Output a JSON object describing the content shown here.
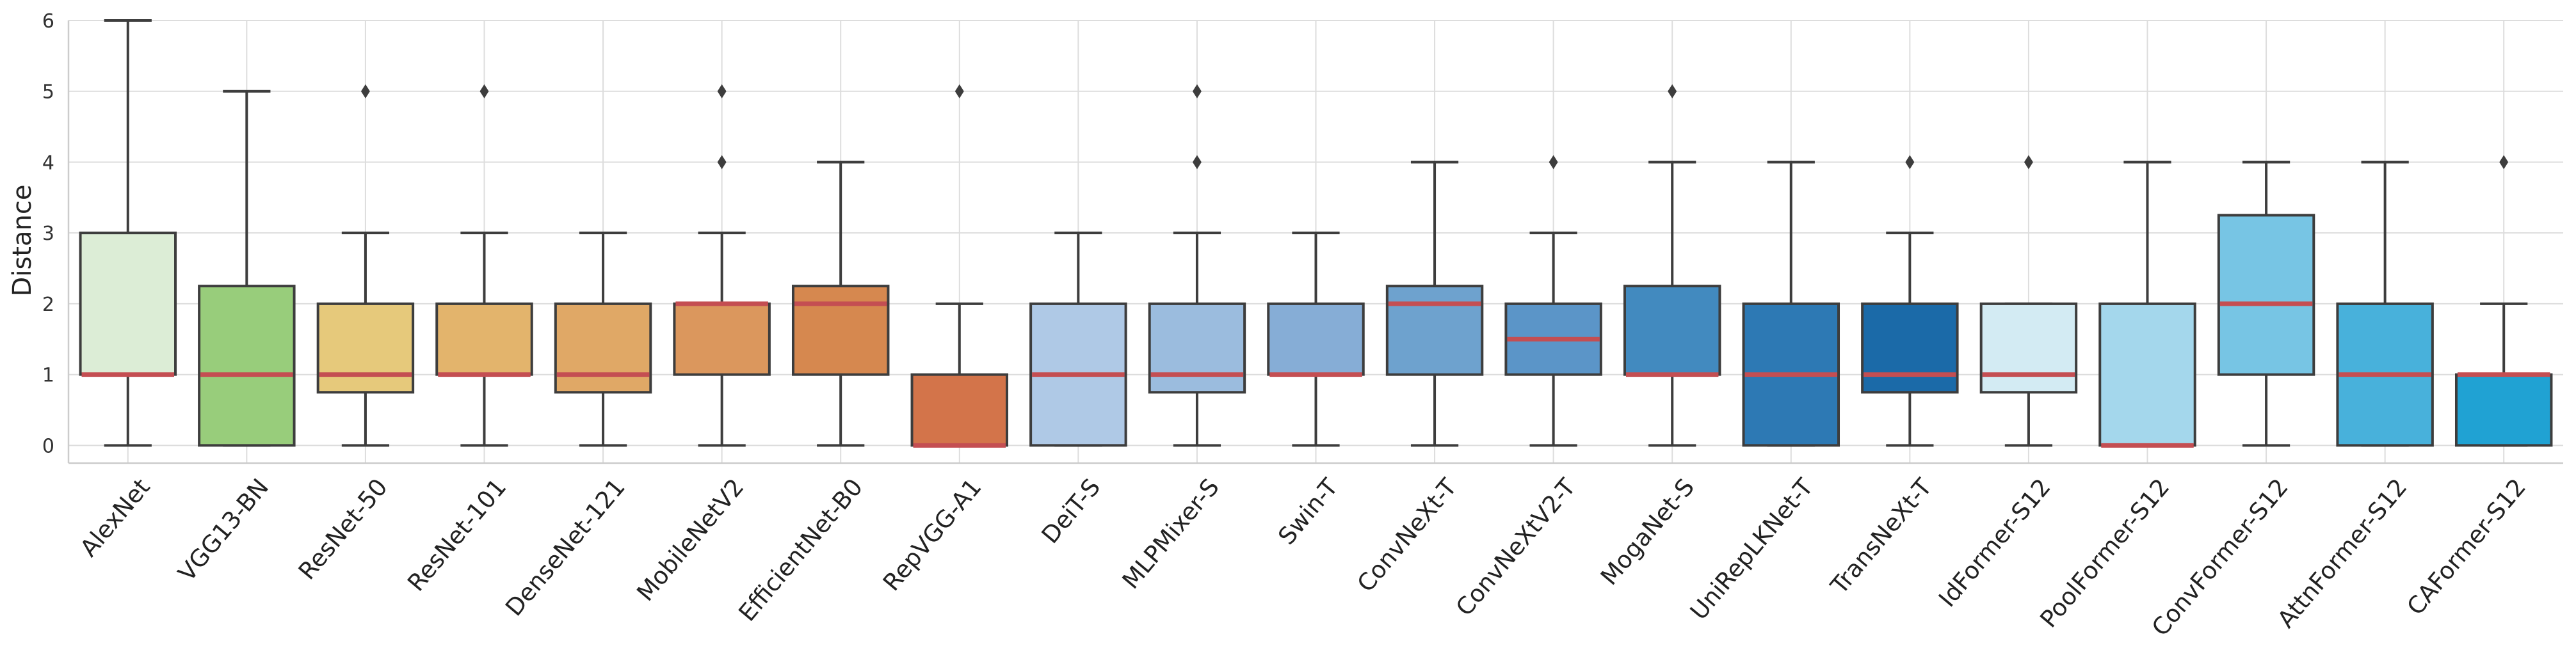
{
  "chart_data": {
    "type": "box",
    "title": "",
    "xlabel": "",
    "ylabel": "Distance",
    "ylim": [
      -0.25,
      6
    ],
    "yticks": [
      0,
      1,
      2,
      3,
      4,
      5,
      6
    ],
    "grid": true,
    "legend": "none",
    "median_color": "#c44e52",
    "categories": [
      "AlexNet",
      "VGG13-BN",
      "ResNet-50",
      "ResNet-101",
      "DenseNet-121",
      "MobileNetV2",
      "EfficientNet-B0",
      "RepVGG-A1",
      "DeiT-S",
      "MLPMixer-S",
      "Swin-T",
      "ConvNeXt-T",
      "ConvNeXtV2-T",
      "MogaNet-S",
      "UniRepLKNet-T",
      "TransNeXt-T",
      "IdFormer-S12",
      "PoolFormer-S12",
      "ConvFormer-S12",
      "AttnFormer-S12",
      "CAFormer-S12"
    ],
    "boxes": [
      {
        "whisker_low": 0,
        "q1": 1,
        "median": 1,
        "q3": 3,
        "whisker_high": 6,
        "outliers": [],
        "color": "#dcedd6"
      },
      {
        "whisker_low": 0,
        "q1": 0,
        "median": 1,
        "q3": 2.25,
        "whisker_high": 5,
        "outliers": [],
        "color": "#98cd7b"
      },
      {
        "whisker_low": 0,
        "q1": 0.75,
        "median": 1,
        "q3": 2,
        "whisker_high": 3,
        "outliers": [
          5
        ],
        "color": "#e6c97b"
      },
      {
        "whisker_low": 0,
        "q1": 1,
        "median": 1,
        "q3": 2,
        "whisker_high": 3,
        "outliers": [
          5
        ],
        "color": "#e3b46c"
      },
      {
        "whisker_low": 0,
        "q1": 0.75,
        "median": 1,
        "q3": 2,
        "whisker_high": 3,
        "outliers": [],
        "color": "#e0a866"
      },
      {
        "whisker_low": 0,
        "q1": 1,
        "median": 2,
        "q3": 2,
        "whisker_high": 3,
        "outliers": [
          4,
          5
        ],
        "color": "#db975d"
      },
      {
        "whisker_low": 0,
        "q1": 1,
        "median": 2,
        "q3": 2.25,
        "whisker_high": 4,
        "outliers": [],
        "color": "#d6884f"
      },
      {
        "whisker_low": 0,
        "q1": 0,
        "median": 0,
        "q3": 1,
        "whisker_high": 2,
        "outliers": [
          5
        ],
        "color": "#d3744a"
      },
      {
        "whisker_low": 0,
        "q1": 0,
        "median": 1,
        "q3": 2,
        "whisker_high": 3,
        "outliers": [],
        "color": "#afc9e6"
      },
      {
        "whisker_low": 0,
        "q1": 0.75,
        "median": 1,
        "q3": 2,
        "whisker_high": 3,
        "outliers": [
          4,
          5
        ],
        "color": "#9bbcde"
      },
      {
        "whisker_low": 0,
        "q1": 1,
        "median": 1,
        "q3": 2,
        "whisker_high": 3,
        "outliers": [],
        "color": "#86add6"
      },
      {
        "whisker_low": 0,
        "q1": 1,
        "median": 2,
        "q3": 2.25,
        "whisker_high": 4,
        "outliers": [],
        "color": "#6ea2ce"
      },
      {
        "whisker_low": 0,
        "q1": 1,
        "median": 1.5,
        "q3": 2,
        "whisker_high": 3,
        "outliers": [
          4
        ],
        "color": "#5b95c8"
      },
      {
        "whisker_low": 0,
        "q1": 1,
        "median": 1,
        "q3": 2.25,
        "whisker_high": 4,
        "outliers": [
          5
        ],
        "color": "#428abf"
      },
      {
        "whisker_low": 0,
        "q1": 0,
        "median": 1,
        "q3": 2,
        "whisker_high": 4,
        "outliers": [],
        "color": "#2d79b4"
      },
      {
        "whisker_low": 0,
        "q1": 0.75,
        "median": 1,
        "q3": 2,
        "whisker_high": 3,
        "outliers": [
          4
        ],
        "color": "#1b6aa8"
      },
      {
        "whisker_low": 0,
        "q1": 0.75,
        "median": 1,
        "q3": 2,
        "whisker_high": 2,
        "outliers": [
          4
        ],
        "color": "#d3ebf3"
      },
      {
        "whisker_low": 0,
        "q1": 0,
        "median": 0,
        "q3": 2,
        "whisker_high": 4,
        "outliers": [],
        "color": "#a4d7ec"
      },
      {
        "whisker_low": 0,
        "q1": 1,
        "median": 2,
        "q3": 3.25,
        "whisker_high": 4,
        "outliers": [],
        "color": "#77c5e4"
      },
      {
        "whisker_low": 0,
        "q1": 0,
        "median": 1,
        "q3": 2,
        "whisker_high": 4,
        "outliers": [],
        "color": "#48b1db"
      },
      {
        "whisker_low": 0,
        "q1": 0,
        "median": 1,
        "q3": 1,
        "whisker_high": 2,
        "outliers": [
          4
        ],
        "color": "#20a2d3"
      }
    ]
  }
}
